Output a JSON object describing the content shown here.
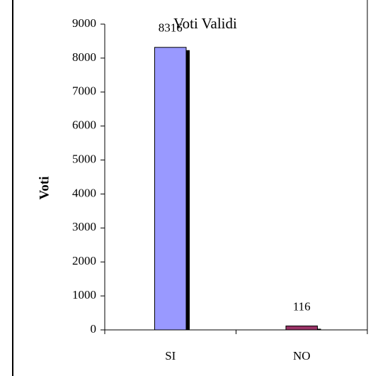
{
  "chart_data": {
    "type": "bar",
    "title": "Voti Validi",
    "y_label": "Voti",
    "categories": [
      "SI",
      "NO"
    ],
    "values": [
      8316,
      116
    ],
    "colors": [
      "#9999ff",
      "#993366"
    ],
    "ylim": [
      0,
      9000
    ],
    "yticks": [
      0,
      1000,
      2000,
      3000,
      4000,
      5000,
      6000,
      7000,
      8000,
      9000
    ],
    "grid": false
  }
}
